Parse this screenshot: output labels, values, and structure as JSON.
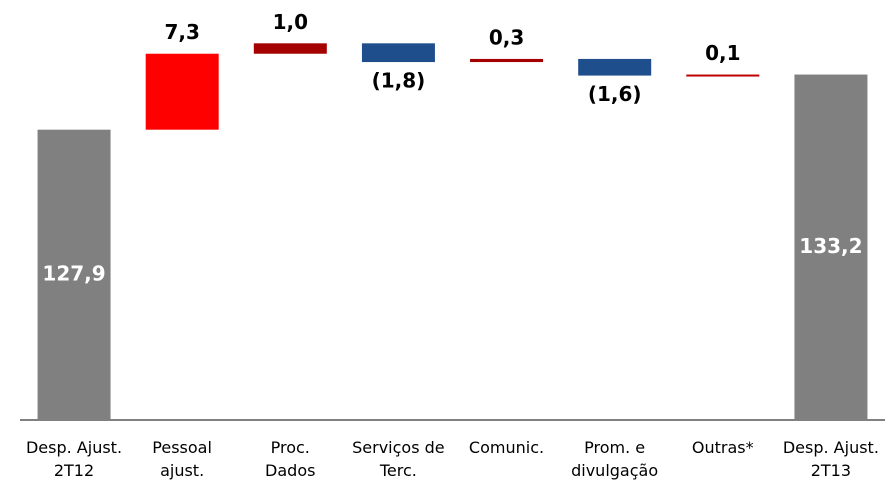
{
  "chart_data": {
    "type": "waterfall",
    "categories": [
      "Desp. Ajust.\n2T12",
      "Pessoal\najust.",
      "Proc.\nDados",
      "Serviços de\nTerc.",
      "Comunic.",
      "Prom. e\ndivulgação",
      "Outras*",
      "Desp. Ajust.\n2T13"
    ],
    "values": [
      127.9,
      7.3,
      1.0,
      -1.8,
      0.3,
      -1.6,
      0.1,
      133.2
    ],
    "value_labels": [
      "127,9",
      "7,3",
      "1,0",
      "(1,8)",
      "0,3",
      "(1,6)",
      "0,1",
      "133,2"
    ],
    "colors": [
      "#808080",
      "#ff0000",
      "#a50000",
      "#1f4e8c",
      "#a50000",
      "#1f4e8c",
      "#c00000",
      "#808080"
    ],
    "ylim": [
      100,
      137
    ]
  }
}
